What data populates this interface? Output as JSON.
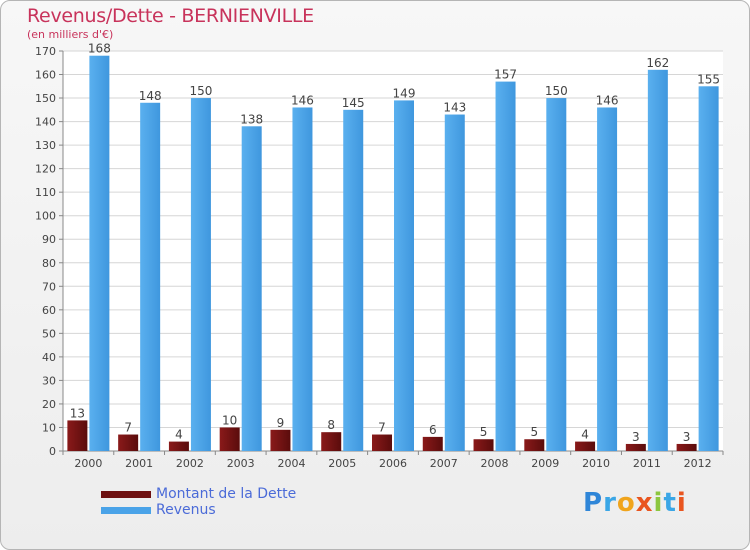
{
  "chart_title": "Revenus/Dette - BERNIENVILLE",
  "chart_subtitle": "(en milliers d'€)",
  "colors": {
    "dette": "#6e1010",
    "revenus": "#4aa3e8",
    "title": "#c8335b",
    "legend_text": "#4b6bd8"
  },
  "legend": [
    {
      "label": "Montant de la Dette",
      "color": "#6e1010"
    },
    {
      "label": "Revenus",
      "color": "#4aa3e8"
    }
  ],
  "logo": {
    "text": "Proxiti"
  },
  "chart_data": {
    "type": "bar",
    "title": "Revenus/Dette - BERNIENVILLE",
    "subtitle": "(en milliers d'€)",
    "xlabel": "",
    "ylabel": "",
    "ylim": [
      0,
      170
    ],
    "y_ticks": [
      0,
      10,
      20,
      30,
      40,
      50,
      60,
      70,
      80,
      90,
      100,
      110,
      120,
      130,
      140,
      150,
      160,
      170
    ],
    "grid": true,
    "legend_position": "bottom-left",
    "categories": [
      "2000",
      "2001",
      "2002",
      "2003",
      "2004",
      "2005",
      "2006",
      "2007",
      "2008",
      "2009",
      "2010",
      "2011",
      "2012"
    ],
    "series": [
      {
        "name": "Montant de la Dette",
        "values": [
          13,
          7,
          4,
          10,
          9,
          8,
          7,
          6,
          5,
          5,
          4,
          3,
          3
        ]
      },
      {
        "name": "Revenus",
        "values": [
          168,
          148,
          150,
          138,
          146,
          145,
          149,
          143,
          157,
          150,
          146,
          162,
          155
        ]
      }
    ]
  }
}
